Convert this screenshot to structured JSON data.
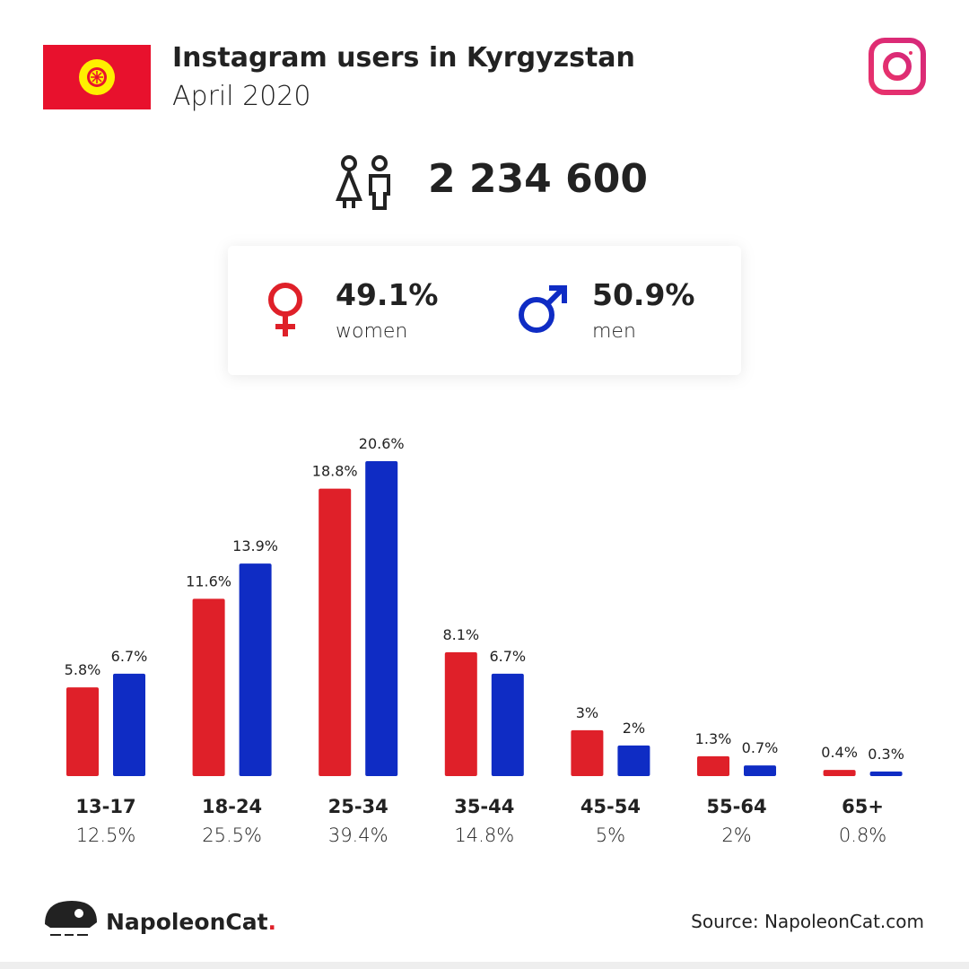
{
  "header": {
    "title": "Instagram users in Kyrgyzstan",
    "subtitle": "April 2020"
  },
  "total": "2 234 600",
  "chart_data": {
    "type": "bar",
    "categories": [
      "13-17",
      "18-24",
      "25-34",
      "35-44",
      "45-54",
      "55-64",
      "65+"
    ],
    "totals": [
      12.5,
      25.5,
      39.4,
      14.8,
      5,
      2,
      0.8
    ],
    "total_labels": [
      "12.5%",
      "25.5%",
      "39.4%",
      "14.8%",
      "5%",
      "2%",
      "0.8%"
    ],
    "series": [
      {
        "name": "women",
        "color": "#df2029",
        "share": 49.1,
        "share_label": "49.1%",
        "values": [
          5.8,
          11.6,
          18.8,
          8.1,
          3,
          1.3,
          0.4
        ],
        "value_labels": [
          "5.8%",
          "11.6%",
          "18.8%",
          "8.1%",
          "3%",
          "1.3%",
          "0.4%"
        ]
      },
      {
        "name": "men",
        "color": "#0f2cc4",
        "share": 50.9,
        "share_label": "50.9%",
        "values": [
          6.7,
          13.9,
          20.6,
          6.7,
          2,
          0.7,
          0.3
        ],
        "value_labels": [
          "6.7%",
          "13.9%",
          "20.6%",
          "6.7%",
          "2%",
          "0.7%",
          "0.3%"
        ]
      }
    ]
  },
  "footer": {
    "brand": "NapoleonCat",
    "brand_mark": ".",
    "source": "Source: NapoleonCat.com"
  }
}
